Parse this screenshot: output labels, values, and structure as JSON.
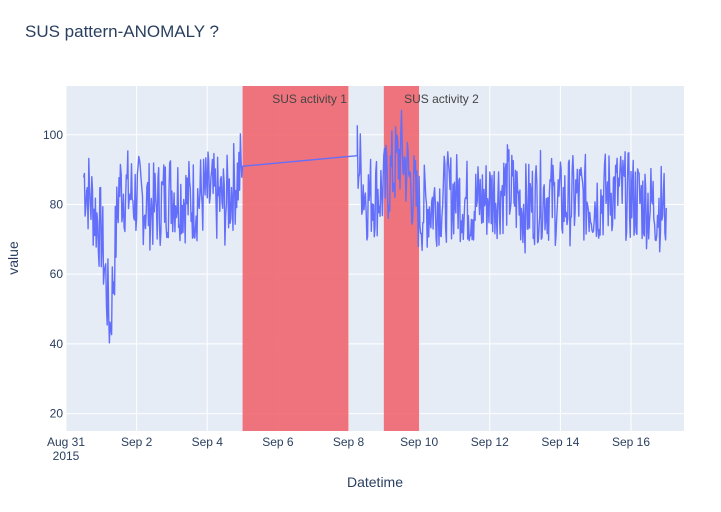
{
  "chart_data": {
    "type": "line",
    "title": "SUS pattern-ANOMALY ?",
    "xlabel": "Datetime",
    "ylabel": "value",
    "x_range": [
      "2015-08-31",
      "2015-09-17"
    ],
    "ylim": [
      15,
      114
    ],
    "grid": true,
    "x_ticks": [
      {
        "date": "2015-08-31",
        "label": "Aug 31",
        "sublabel": "2015"
      },
      {
        "date": "2015-09-02",
        "label": "Sep 2"
      },
      {
        "date": "2015-09-04",
        "label": "Sep 4"
      },
      {
        "date": "2015-09-06",
        "label": "Sep 6"
      },
      {
        "date": "2015-09-08",
        "label": "Sep 8"
      },
      {
        "date": "2015-09-10",
        "label": "Sep 10"
      },
      {
        "date": "2015-09-12",
        "label": "Sep 12"
      },
      {
        "date": "2015-09-14",
        "label": "Sep 14"
      },
      {
        "date": "2015-09-16",
        "label": "Sep 16"
      }
    ],
    "y_ticks": [
      20,
      40,
      60,
      80,
      100
    ],
    "shaded_regions": [
      {
        "label": "SUS activity 1",
        "start": "2015-09-05",
        "end": "2015-09-08",
        "color": "#F0626B"
      },
      {
        "label": "SUS activity 2",
        "start": "2015-09-09",
        "end": "2015-09-10",
        "color": "#F0626B"
      }
    ],
    "series": [
      {
        "color": "#636EFA",
        "points": [
          [
            "2015-08-31 12:00",
            88
          ],
          [
            "2015-09-01 00:00",
            72
          ],
          [
            "2015-09-01 06:00",
            45
          ],
          [
            "2015-09-01 12:00",
            85
          ],
          [
            "2015-09-02 00:00",
            82
          ],
          [
            "2015-09-02 12:00",
            79
          ],
          [
            "2015-09-03 00:00",
            84
          ],
          [
            "2015-09-03 12:00",
            81
          ],
          [
            "2015-09-04 00:00",
            83
          ],
          [
            "2015-09-04 12:00",
            80
          ],
          [
            "2015-09-05 00:00",
            91
          ],
          [
            "2015-09-08 06:00",
            94
          ],
          [
            "2015-09-08 12:00",
            82
          ],
          [
            "2015-09-09 00:00",
            84
          ],
          [
            "2015-09-09 12:00",
            95
          ],
          [
            "2015-09-10 00:00",
            78
          ],
          [
            "2015-09-10 12:00",
            81
          ],
          [
            "2015-09-11 00:00",
            83
          ],
          [
            "2015-09-11 12:00",
            80
          ],
          [
            "2015-09-12 00:00",
            82
          ],
          [
            "2015-09-12 12:00",
            85
          ],
          [
            "2015-09-13 00:00",
            79
          ],
          [
            "2015-09-13 12:00",
            83
          ],
          [
            "2015-09-14 00:00",
            80
          ],
          [
            "2015-09-14 12:00",
            82
          ],
          [
            "2015-09-15 00:00",
            81
          ],
          [
            "2015-09-15 12:00",
            84
          ],
          [
            "2015-09-16 00:00",
            82
          ],
          [
            "2015-09-16 12:00",
            80
          ],
          [
            "2015-09-17 00:00",
            79
          ]
        ]
      }
    ]
  }
}
